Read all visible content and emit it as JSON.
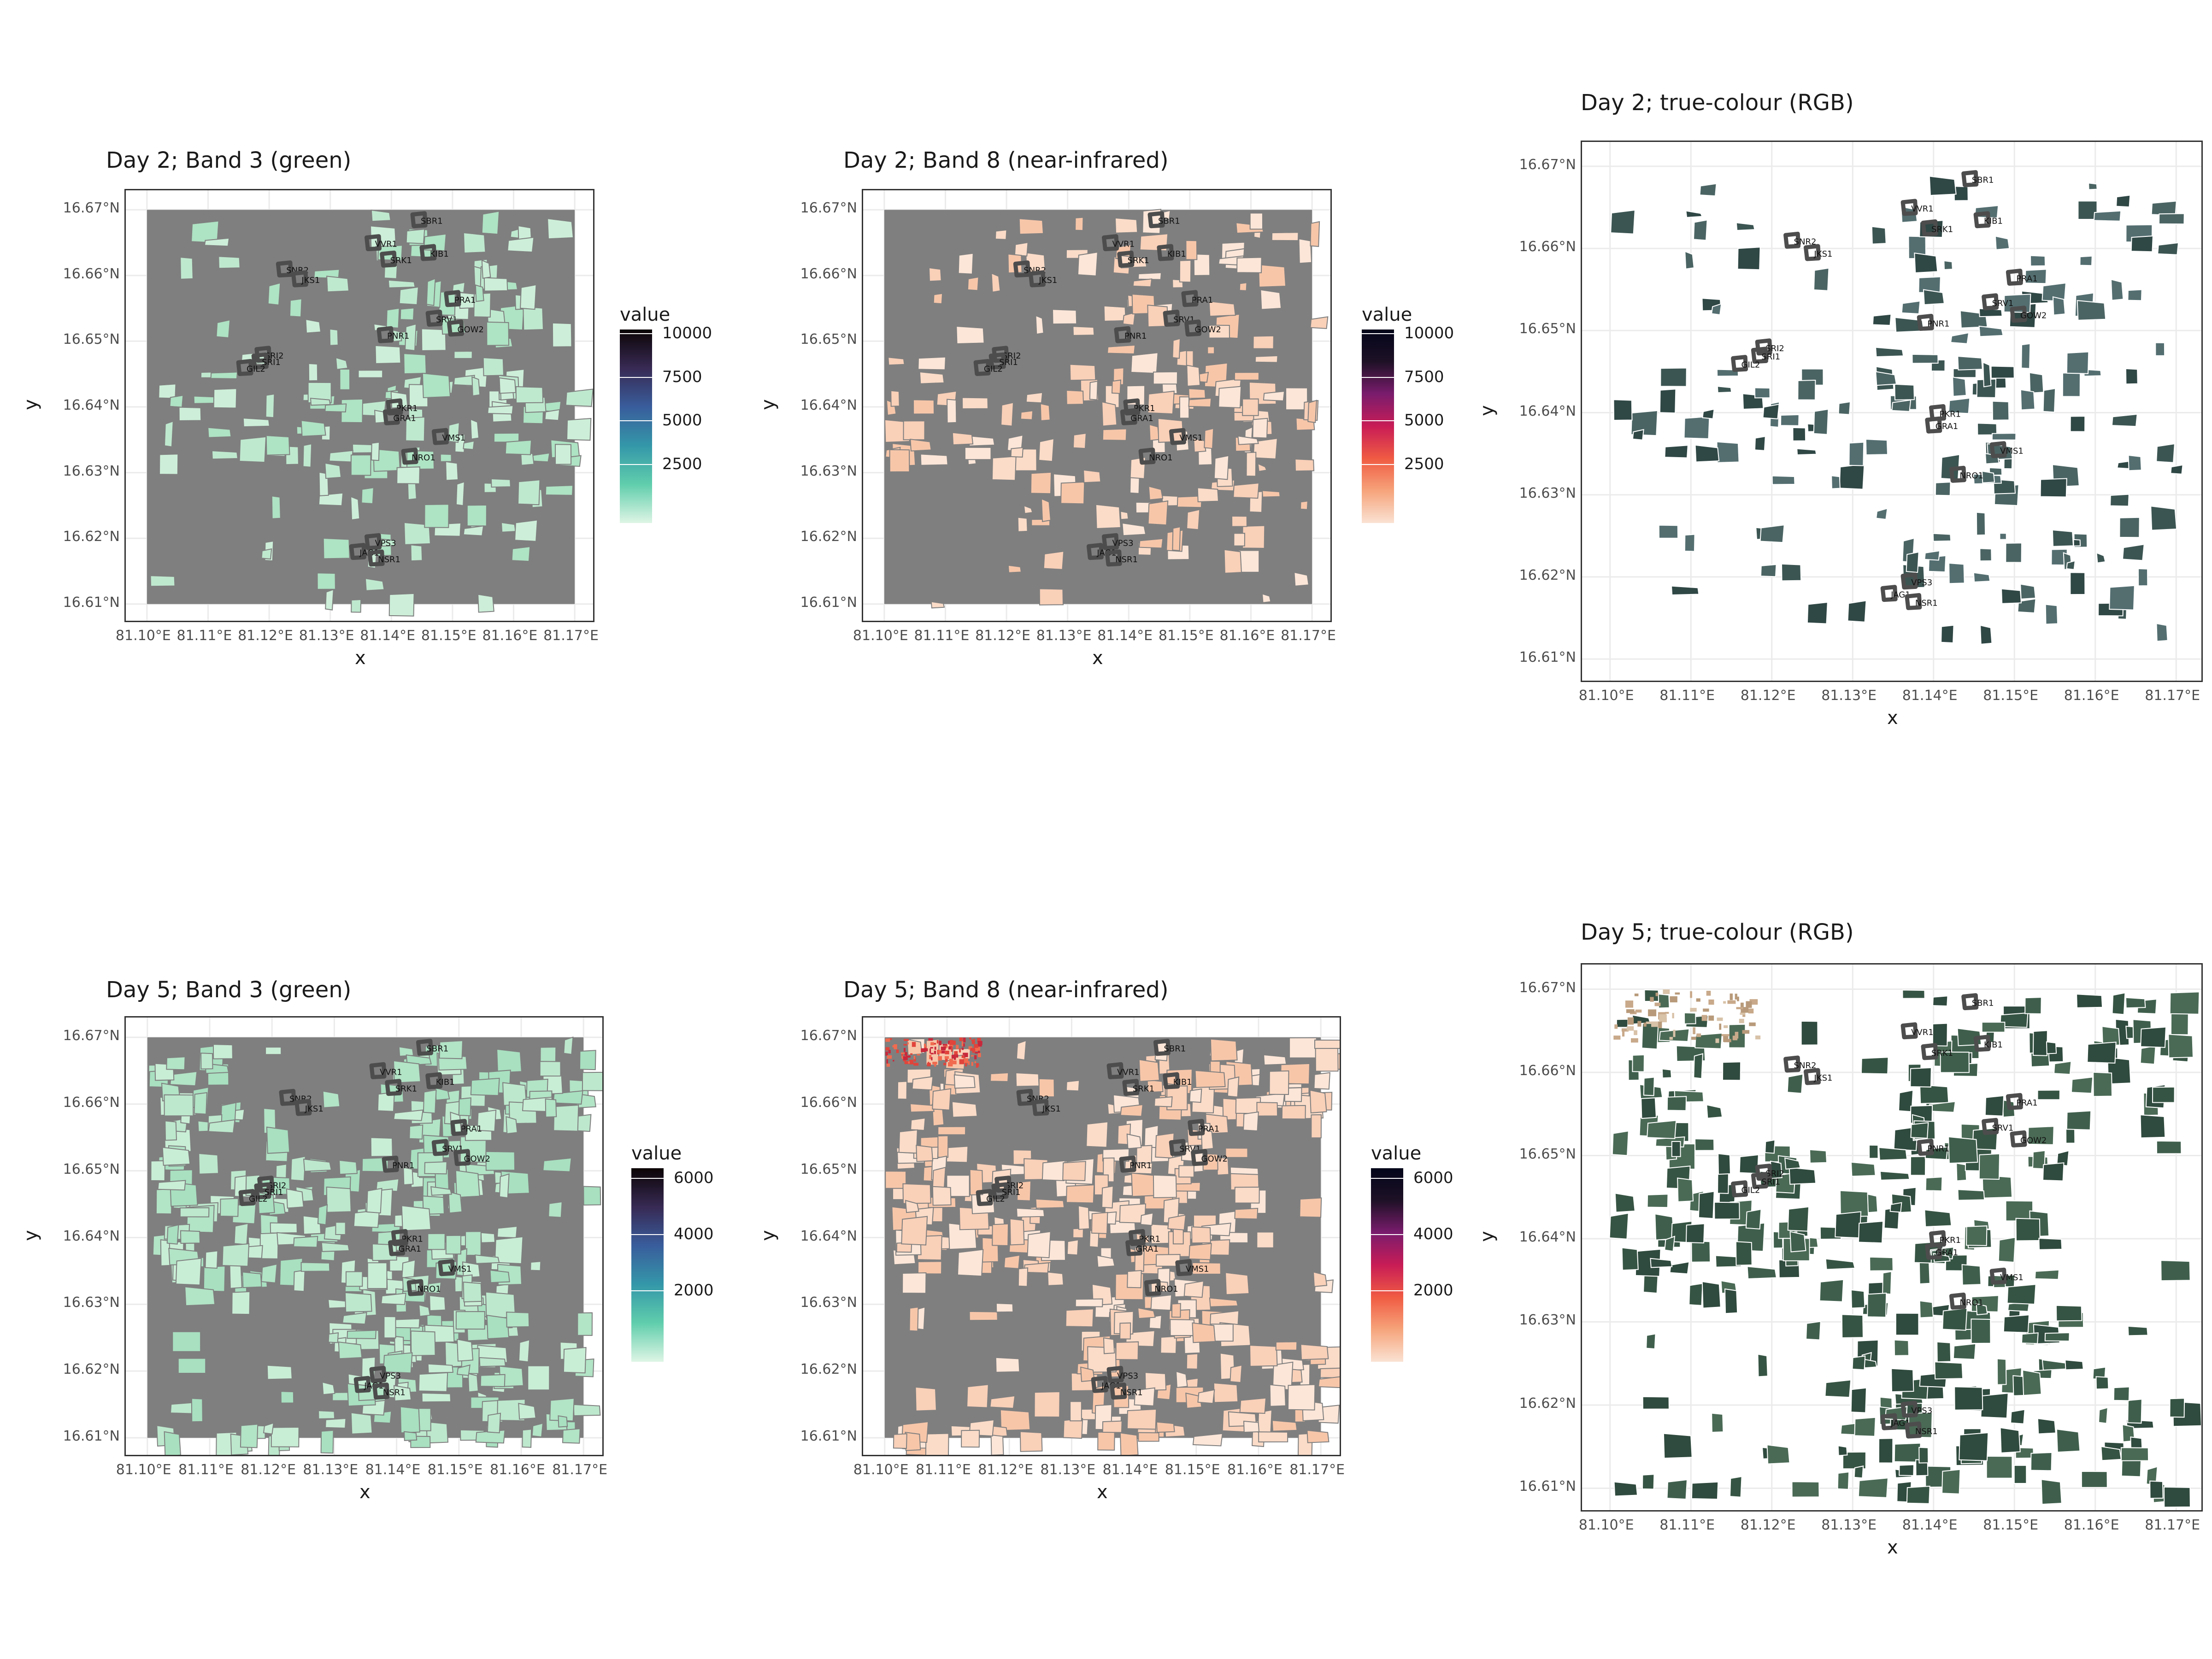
{
  "panels": [
    {
      "title": "Day 2; Band 3 (green)",
      "kind": "green",
      "legend": {
        "title": "value",
        "ticks": [
          "10000",
          "7500",
          "5000",
          "2500"
        ]
      }
    },
    {
      "title": "Day 2; Band 8 (near-infrared)",
      "kind": "nir",
      "legend": {
        "title": "value",
        "ticks": [
          "10000",
          "7500",
          "5000",
          "2500"
        ]
      }
    },
    {
      "title": "Day 2; true-colour (RGB)",
      "kind": "rgb",
      "legend": null
    },
    {
      "title": "Day 5; Band 3 (green)",
      "kind": "green",
      "legend": {
        "title": "value",
        "ticks": [
          "6000",
          "4000",
          "2000"
        ]
      }
    },
    {
      "title": "Day 5; Band 8 (near-infrared)",
      "kind": "nir",
      "legend": {
        "title": "value",
        "ticks": [
          "6000",
          "4000",
          "2000"
        ]
      }
    },
    {
      "title": "Day 5; true-colour (RGB)",
      "kind": "rgb",
      "legend": null
    }
  ],
  "axes": {
    "xlabel": "x",
    "ylabel": "y",
    "x_ticks": [
      "81.10°E",
      "81.11°E",
      "81.12°E",
      "81.13°E",
      "81.14°E",
      "81.15°E",
      "81.16°E",
      "81.17°E"
    ],
    "y_ticks": [
      "16.67°N",
      "16.66°N",
      "16.65°N",
      "16.64°N",
      "16.63°N",
      "16.62°N",
      "16.61°N"
    ],
    "x_range": [
      81.1,
      81.17
    ],
    "y_range": [
      16.61,
      16.67
    ]
  },
  "sites": [
    {
      "label": "SBR1",
      "lon": 81.1445,
      "lat": 16.6685
    },
    {
      "label": "VVR1",
      "lon": 81.137,
      "lat": 16.665
    },
    {
      "label": "KIB1",
      "lon": 81.146,
      "lat": 16.6635
    },
    {
      "label": "SRK1",
      "lon": 81.1395,
      "lat": 16.6625
    },
    {
      "label": "SNR2",
      "lon": 81.1225,
      "lat": 16.661
    },
    {
      "label": "JKS1",
      "lon": 81.125,
      "lat": 16.6595
    },
    {
      "label": "PRA1",
      "lon": 81.15,
      "lat": 16.6565
    },
    {
      "label": "SRV1",
      "lon": 81.147,
      "lat": 16.6535
    },
    {
      "label": "GOW2",
      "lon": 81.1505,
      "lat": 16.652
    },
    {
      "label": "PNR1",
      "lon": 81.139,
      "lat": 16.651
    },
    {
      "label": "SRI2",
      "lon": 81.119,
      "lat": 16.648
    },
    {
      "label": "SRI1",
      "lon": 81.1185,
      "lat": 16.647
    },
    {
      "label": "GIL2",
      "lon": 81.116,
      "lat": 16.646
    },
    {
      "label": "PKR1",
      "lon": 81.1405,
      "lat": 16.64
    },
    {
      "label": "GRA1",
      "lon": 81.14,
      "lat": 16.6385
    },
    {
      "label": "VMS1",
      "lon": 81.148,
      "lat": 16.6355
    },
    {
      "label": "NRO1",
      "lon": 81.143,
      "lat": 16.6325
    },
    {
      "label": "VPS3",
      "lon": 81.137,
      "lat": 16.6195
    },
    {
      "label": "JAG1",
      "lon": 81.1345,
      "lat": 16.618
    },
    {
      "label": "NSR1",
      "lon": 81.1375,
      "lat": 16.617
    }
  ],
  "colors": {
    "background_nodata": "#7f7f7f",
    "green_scale": [
      "#def5e5",
      "#60ceac",
      "#3497a9",
      "#395d9c",
      "#382a54",
      "#0b0405"
    ],
    "nir_scale": [
      "#fae2d3",
      "#f6a47b",
      "#f05b43",
      "#c81c56",
      "#7a1c6d",
      "#1e1126",
      "#03051a"
    ],
    "rgb_field": "#3c5a50",
    "site_outline": "#4d4d4d"
  }
}
